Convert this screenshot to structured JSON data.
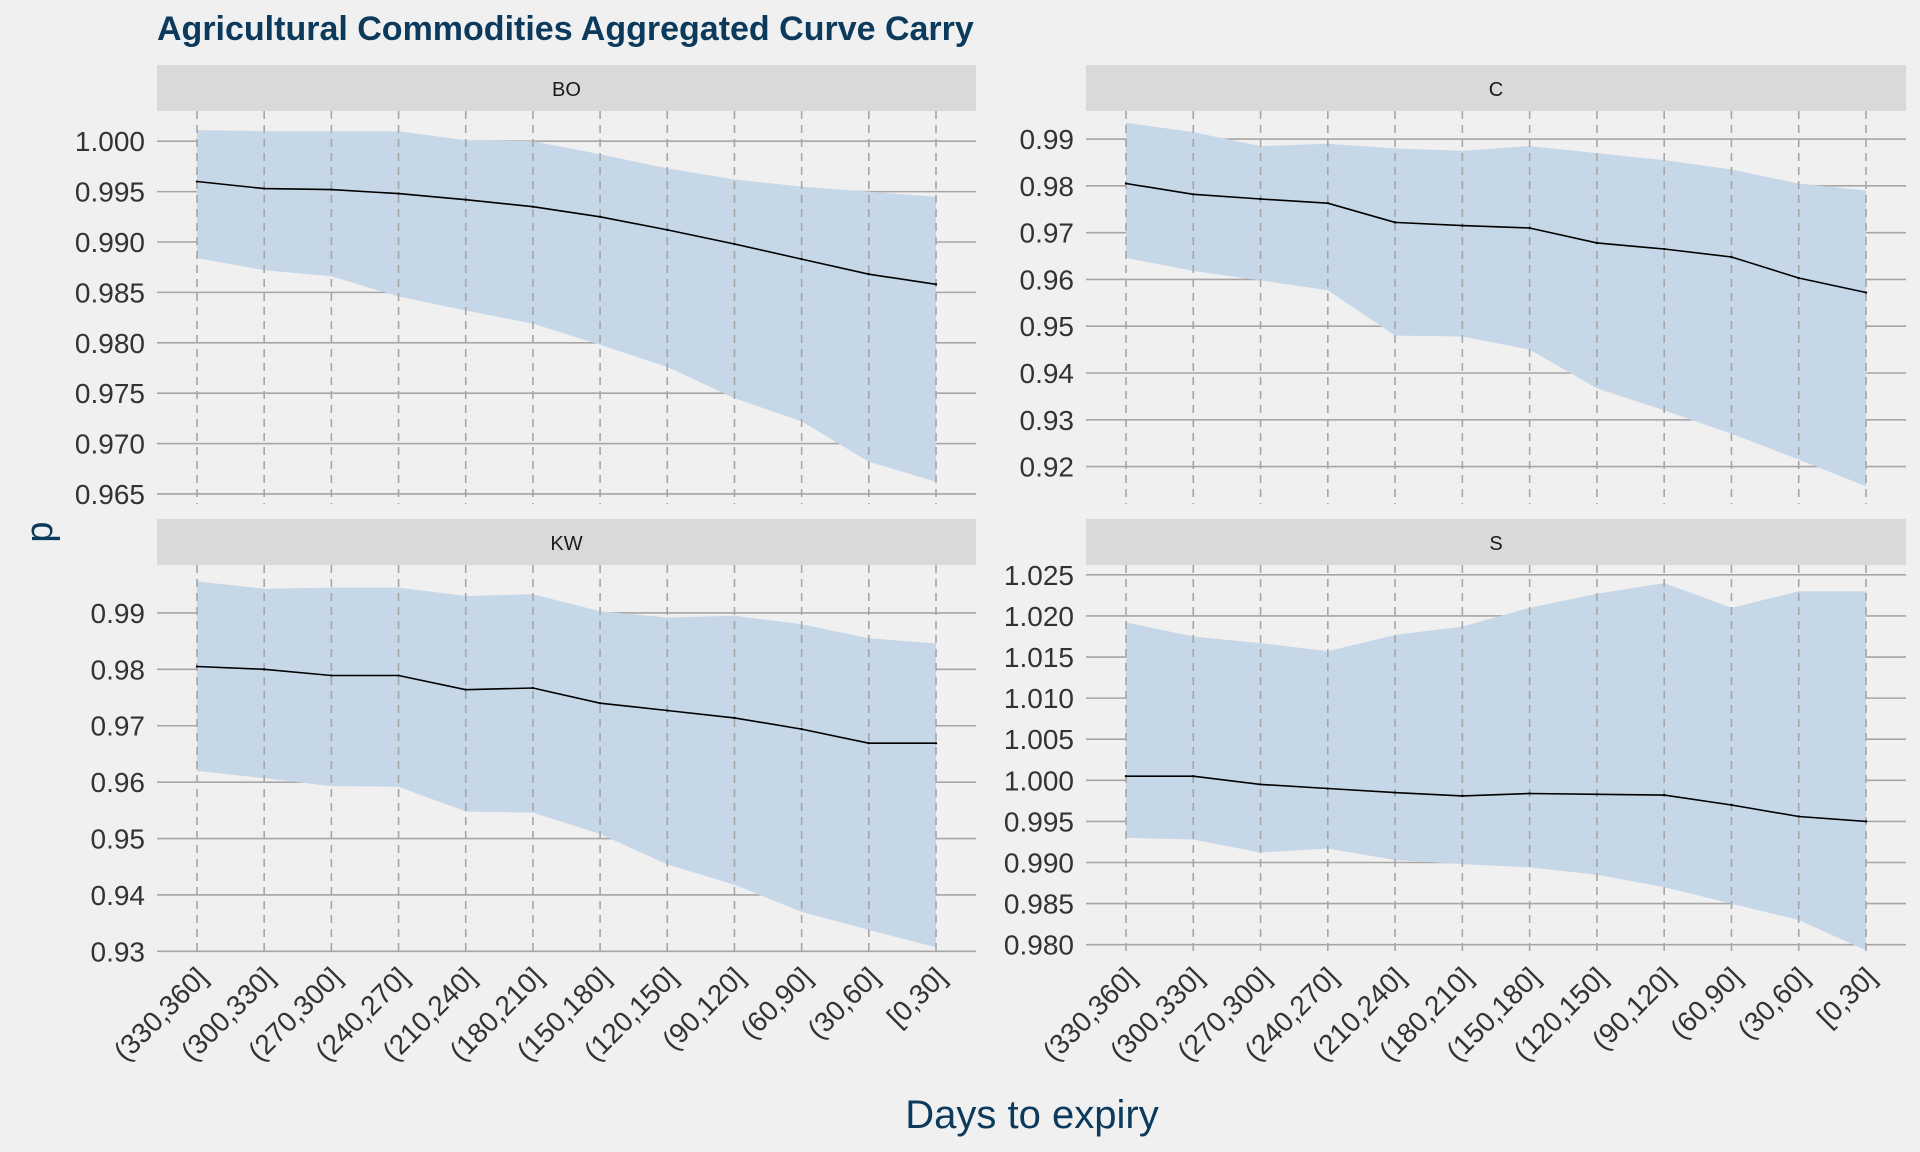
{
  "colors": {
    "background": "#f0f0f0",
    "strip": "#d9d9d9",
    "band": "#c6d7e8",
    "line": "#000000",
    "grid": "#a6a6a6",
    "title": "#0b3a5c",
    "tick_text": "#333333"
  },
  "chart_data": {
    "type": "line",
    "title": "Agricultural Commodities Aggregated Curve Carry",
    "xlabel": "Days to expiry",
    "ylabel": "p",
    "categories": [
      "(330,360]",
      "(300,330]",
      "(270,300]",
      "(240,270]",
      "(210,240]",
      "(180,210]",
      "(150,180]",
      "(120,150]",
      "(90,120]",
      "(60,90]",
      "(30,60]",
      "[0,30]"
    ],
    "grid": true,
    "panels": [
      {
        "name": "BO",
        "ylim": [
          0.964,
          1.003
        ],
        "yticks": [
          "0.965",
          "0.970",
          "0.975",
          "0.980",
          "0.985",
          "0.990",
          "0.995",
          "1.000"
        ],
        "series": [
          {
            "role": "median",
            "values": [
              0.996,
              0.9953,
              0.9952,
              0.9948,
              0.9942,
              0.9935,
              0.9925,
              0.9912,
              0.9898,
              0.9883,
              0.9868,
              0.9858
            ]
          },
          {
            "role": "lower",
            "values": [
              0.9884,
              0.9872,
              0.9866,
              0.9846,
              0.9832,
              0.9819,
              0.9798,
              0.9776,
              0.9745,
              0.9722,
              0.9682,
              0.9662
            ]
          },
          {
            "role": "upper",
            "values": [
              1.0011,
              1.001,
              1.001,
              1.001,
              1.0001,
              1.0,
              0.9987,
              0.9973,
              0.9962,
              0.9955,
              0.995,
              0.9945
            ]
          }
        ]
      },
      {
        "name": "C",
        "ylim": [
          0.912,
          0.996
        ],
        "yticks": [
          "0.92",
          "0.93",
          "0.94",
          "0.95",
          "0.96",
          "0.97",
          "0.98",
          "0.99"
        ],
        "series": [
          {
            "role": "median",
            "values": [
              0.9805,
              0.9782,
              0.9772,
              0.9763,
              0.9722,
              0.9715,
              0.971,
              0.9678,
              0.9665,
              0.9648,
              0.9603,
              0.9572
            ]
          },
          {
            "role": "lower",
            "values": [
              0.9646,
              0.9618,
              0.9598,
              0.9577,
              0.948,
              0.9478,
              0.945,
              0.9367,
              0.932,
              0.927,
              0.9215,
              0.9158
            ]
          },
          {
            "role": "upper",
            "values": [
              0.9935,
              0.9915,
              0.9885,
              0.989,
              0.988,
              0.9875,
              0.9885,
              0.987,
              0.9855,
              0.9835,
              0.9805,
              0.979
            ]
          }
        ]
      },
      {
        "name": "KW",
        "ylim": [
          0.929,
          0.9985
        ],
        "yticks": [
          "0.93",
          "0.94",
          "0.95",
          "0.96",
          "0.97",
          "0.98",
          "0.99"
        ],
        "series": [
          {
            "role": "median",
            "values": [
              0.9805,
              0.98,
              0.9789,
              0.9789,
              0.9764,
              0.9767,
              0.974,
              0.9727,
              0.9714,
              0.9694,
              0.9669,
              0.9669
            ]
          },
          {
            "role": "lower",
            "values": [
              0.962,
              0.9607,
              0.9593,
              0.9592,
              0.9548,
              0.9546,
              0.9508,
              0.9454,
              0.9418,
              0.937,
              0.9338,
              0.9307
            ]
          },
          {
            "role": "upper",
            "values": [
              0.9956,
              0.9943,
              0.9945,
              0.9945,
              0.993,
              0.9933,
              0.9903,
              0.9892,
              0.9895,
              0.988,
              0.9855,
              0.9846
            ]
          }
        ]
      },
      {
        "name": "S",
        "ylim": [
          0.9785,
          1.0262
        ],
        "yticks": [
          "0.980",
          "0.985",
          "0.990",
          "0.995",
          "1.000",
          "1.005",
          "1.010",
          "1.015",
          "1.020",
          "1.025"
        ],
        "series": [
          {
            "role": "median",
            "values": [
              1.0005,
              1.0005,
              0.9995,
              0.999,
              0.9985,
              0.9981,
              0.9984,
              0.9983,
              0.9982,
              0.997,
              0.9956,
              0.995
            ]
          },
          {
            "role": "lower",
            "values": [
              0.993,
              0.9928,
              0.9912,
              0.9917,
              0.9903,
              0.9898,
              0.9894,
              0.9885,
              0.987,
              0.985,
              0.983,
              0.9793
            ]
          },
          {
            "role": "upper",
            "values": [
              1.0192,
              1.0175,
              1.0167,
              1.0157,
              1.0177,
              1.0187,
              1.021,
              1.0227,
              1.024,
              1.021,
              1.023,
              1.023
            ]
          }
        ]
      }
    ]
  }
}
